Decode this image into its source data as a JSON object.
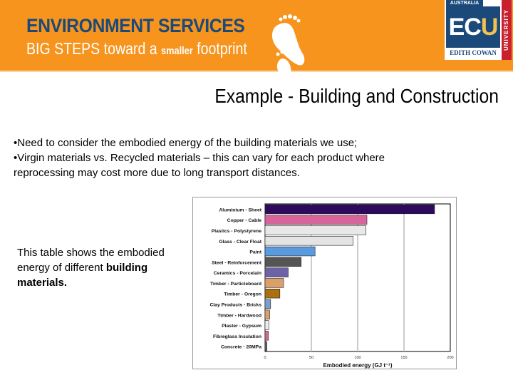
{
  "banner": {
    "title": "ENVIRONMENT SERVICES",
    "subtitle_pre": "BIG STEPS toward a ",
    "subtitle_small": "smaller",
    "subtitle_post": " footprint",
    "bg_color": "#f7941d",
    "title_color": "#1b4a7a"
  },
  "logo": {
    "country": "AUSTRALIA",
    "name_e": "EC",
    "name_u": "U",
    "edith_cowan": "EDITH COWAN",
    "university": "UNIVERSITY"
  },
  "slide": {
    "title": "Example - Building and Construction",
    "bullets": [
      "•Need to consider the embodied energy of the building materials we use;",
      "•Virgin materials vs. Recycled materials – this can vary for each product where reprocessing may cost more due to long transport distances."
    ],
    "note_pre": "This table shows the embodied energy of different ",
    "note_bold": "building materials."
  },
  "chart_data": {
    "type": "bar",
    "orientation": "horizontal",
    "title": "",
    "xlabel": "Embodied energy (GJ t⁻¹)",
    "ylabel": "",
    "xlim": [
      0,
      200
    ],
    "xticks": [
      "0",
      "50",
      "100",
      "150",
      "200"
    ],
    "grid": "vertical",
    "categories": [
      "Aluminium - Sheet",
      "Copper - Cable",
      "Plastics - Polystyrene",
      "Glass - Clear Float",
      "Paint",
      "Steel - Reinforcement",
      "Ceramics - Porcelain",
      "Timber - Particleboard",
      "Timber - Oregon",
      "Clay Products - Bricks",
      "Timber - Hardwood",
      "Plaster - Gypsum",
      "Fibreglass Insulation",
      "Concrete - 20MPa"
    ],
    "values": [
      183,
      110,
      109,
      95,
      54,
      39,
      25,
      20,
      16,
      6,
      5,
      4,
      3.5,
      2
    ],
    "colors": [
      "#2e0a5e",
      "#d8649c",
      "#e8e8e8",
      "#e4e4e4",
      "#5a9ade",
      "#555555",
      "#6e62a6",
      "#d9a06a",
      "#a8700f",
      "#7d9cc8",
      "#d9a06a",
      "#eeeeee",
      "#d8649c",
      "#666666"
    ]
  }
}
